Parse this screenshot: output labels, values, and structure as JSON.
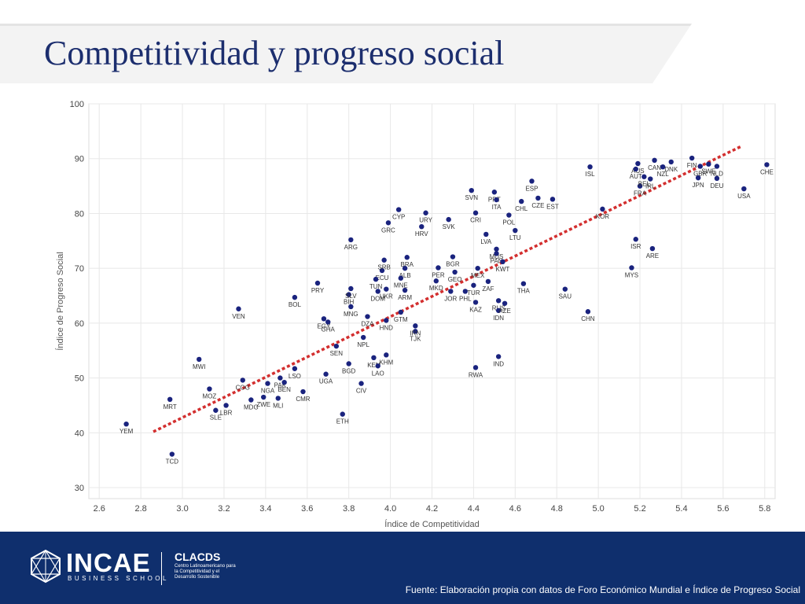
{
  "slide": {
    "title": "Competitividad y progreso social"
  },
  "footer": {
    "brand": "INCAE",
    "brand_sub": "BUSINESS SCHOOL",
    "clacds": "CLACDS",
    "clacds_sub": "Centro Latinoamericano para la Competitividad y el Desarrollo Sostenible",
    "source": "Fuente:  Elaboración propia con datos de Foro Económico Mundial e Índice de Progreso Social"
  },
  "colors": {
    "title": "#1c2e6e",
    "point": "#1a237e",
    "trend": "#d32f2f",
    "footer": "#0f2f6d",
    "grid": "#e8e8e8"
  },
  "chart_data": {
    "type": "scatter",
    "title": "",
    "xlabel": "Índice de Competitividad",
    "ylabel": "Índice de Progreso Social",
    "xlim": [
      2.55,
      5.85
    ],
    "ylim": [
      28,
      100
    ],
    "xticks": [
      2.6,
      2.8,
      3.0,
      3.2,
      3.4,
      3.6,
      3.8,
      4.0,
      4.2,
      4.4,
      4.6,
      4.8,
      5.0,
      5.2,
      5.4,
      5.6,
      5.8
    ],
    "yticks": [
      30,
      40,
      50,
      60,
      70,
      80,
      90,
      100
    ],
    "grid": true,
    "trendline": {
      "x": [
        2.86,
        5.69
      ],
      "y": [
        40.2,
        92.3
      ]
    },
    "points": [
      {
        "label": "YEM",
        "x": 2.73,
        "y": 41.6
      },
      {
        "label": "TCD",
        "x": 2.95,
        "y": 36.1
      },
      {
        "label": "MRT",
        "x": 2.94,
        "y": 46.1
      },
      {
        "label": "MWI",
        "x": 3.08,
        "y": 53.4
      },
      {
        "label": "MOZ",
        "x": 3.13,
        "y": 48.0
      },
      {
        "label": "SLE",
        "x": 3.16,
        "y": 44.1
      },
      {
        "label": "LBR",
        "x": 3.21,
        "y": 45.0
      },
      {
        "label": "VEN",
        "x": 3.27,
        "y": 62.6
      },
      {
        "label": "COG",
        "x": 3.29,
        "y": 49.6
      },
      {
        "label": "MDG",
        "x": 3.33,
        "y": 46.0
      },
      {
        "label": "ZWE",
        "x": 3.39,
        "y": 46.5
      },
      {
        "label": "NGA",
        "x": 3.41,
        "y": 49.0
      },
      {
        "label": "PAK",
        "x": 3.47,
        "y": 50.0
      },
      {
        "label": "MLI",
        "x": 3.46,
        "y": 46.3
      },
      {
        "label": "BEN",
        "x": 3.49,
        "y": 49.2
      },
      {
        "label": "LSO",
        "x": 3.54,
        "y": 51.7
      },
      {
        "label": "CMR",
        "x": 3.58,
        "y": 47.5
      },
      {
        "label": "BOL",
        "x": 3.54,
        "y": 64.7
      },
      {
        "label": "PRY",
        "x": 3.65,
        "y": 67.3
      },
      {
        "label": "UGA",
        "x": 3.69,
        "y": 50.7
      },
      {
        "label": "EGY",
        "x": 3.68,
        "y": 60.8
      },
      {
        "label": "GHA",
        "x": 3.7,
        "y": 60.2
      },
      {
        "label": "SEN",
        "x": 3.74,
        "y": 55.8
      },
      {
        "label": "ETH",
        "x": 3.77,
        "y": 43.4
      },
      {
        "label": "BGD",
        "x": 3.8,
        "y": 52.6
      },
      {
        "label": "BIH",
        "x": 3.8,
        "y": 65.2
      },
      {
        "label": "MNG",
        "x": 3.81,
        "y": 63.0
      },
      {
        "label": "ARG",
        "x": 3.81,
        "y": 75.2
      },
      {
        "label": "SLV",
        "x": 3.81,
        "y": 66.3
      },
      {
        "label": "NPL",
        "x": 3.87,
        "y": 57.4
      },
      {
        "label": "CIV",
        "x": 3.86,
        "y": 49.0
      },
      {
        "label": "DZA",
        "x": 3.89,
        "y": 61.2
      },
      {
        "label": "KEN",
        "x": 3.92,
        "y": 53.7
      },
      {
        "label": "LAO",
        "x": 3.94,
        "y": 52.2
      },
      {
        "label": "ECU",
        "x": 3.96,
        "y": 69.6
      },
      {
        "label": "SRB",
        "x": 3.97,
        "y": 71.5
      },
      {
        "label": "TUN",
        "x": 3.93,
        "y": 68.0
      },
      {
        "label": "DOM",
        "x": 3.94,
        "y": 65.8
      },
      {
        "label": "UKR",
        "x": 3.98,
        "y": 66.2
      },
      {
        "label": "KHM",
        "x": 3.98,
        "y": 54.2
      },
      {
        "label": "HND",
        "x": 3.98,
        "y": 60.5
      },
      {
        "label": "GRC",
        "x": 3.99,
        "y": 78.3
      },
      {
        "label": "CYP",
        "x": 4.04,
        "y": 80.7
      },
      {
        "label": "ARM",
        "x": 4.07,
        "y": 66.0
      },
      {
        "label": "BRA",
        "x": 4.08,
        "y": 72.0
      },
      {
        "label": "ALB",
        "x": 4.07,
        "y": 70.0
      },
      {
        "label": "MNE",
        "x": 4.05,
        "y": 68.2
      },
      {
        "label": "GTM",
        "x": 4.05,
        "y": 62.0
      },
      {
        "label": "TJK",
        "x": 4.12,
        "y": 58.5
      },
      {
        "label": "IRN",
        "x": 4.12,
        "y": 59.5
      },
      {
        "label": "HRV",
        "x": 4.15,
        "y": 77.6
      },
      {
        "label": "URY",
        "x": 4.17,
        "y": 80.1
      },
      {
        "label": "PER",
        "x": 4.23,
        "y": 70.1
      },
      {
        "label": "MKD",
        "x": 4.22,
        "y": 67.7
      },
      {
        "label": "SVK",
        "x": 4.28,
        "y": 78.9
      },
      {
        "label": "JOR",
        "x": 4.29,
        "y": 65.8
      },
      {
        "label": "GEO",
        "x": 4.31,
        "y": 69.3
      },
      {
        "label": "BGR",
        "x": 4.3,
        "y": 72.1
      },
      {
        "label": "PHL",
        "x": 4.36,
        "y": 65.8
      },
      {
        "label": "SVN",
        "x": 4.39,
        "y": 84.2
      },
      {
        "label": "CRI",
        "x": 4.41,
        "y": 80.1
      },
      {
        "label": "TUR",
        "x": 4.4,
        "y": 66.9
      },
      {
        "label": "KAZ",
        "x": 4.41,
        "y": 63.8
      },
      {
        "label": "RWA",
        "x": 4.41,
        "y": 51.9
      },
      {
        "label": "MEX",
        "x": 4.42,
        "y": 70.0
      },
      {
        "label": "LVA",
        "x": 4.46,
        "y": 76.2
      },
      {
        "label": "ZAF",
        "x": 4.47,
        "y": 67.6
      },
      {
        "label": "PRT",
        "x": 4.5,
        "y": 83.9
      },
      {
        "label": "ITA",
        "x": 4.51,
        "y": 82.5
      },
      {
        "label": "MUS",
        "x": 4.51,
        "y": 73.5
      },
      {
        "label": "PAN",
        "x": 4.51,
        "y": 72.7
      },
      {
        "label": "KWT",
        "x": 4.54,
        "y": 71.2
      },
      {
        "label": "RUS",
        "x": 4.52,
        "y": 64.1
      },
      {
        "label": "IDN",
        "x": 4.52,
        "y": 62.3
      },
      {
        "label": "IND",
        "x": 4.52,
        "y": 53.9
      },
      {
        "label": "AZE",
        "x": 4.55,
        "y": 63.6
      },
      {
        "label": "POL",
        "x": 4.57,
        "y": 79.7
      },
      {
        "label": "LTU",
        "x": 4.6,
        "y": 76.9
      },
      {
        "label": "CHL",
        "x": 4.63,
        "y": 82.2
      },
      {
        "label": "THA",
        "x": 4.64,
        "y": 67.2
      },
      {
        "label": "ESP",
        "x": 4.68,
        "y": 85.9
      },
      {
        "label": "CZE",
        "x": 4.71,
        "y": 82.8
      },
      {
        "label": "EST",
        "x": 4.78,
        "y": 82.6
      },
      {
        "label": "SAU",
        "x": 4.84,
        "y": 66.2
      },
      {
        "label": "ISL",
        "x": 4.96,
        "y": 88.5
      },
      {
        "label": "CHN",
        "x": 4.95,
        "y": 62.1
      },
      {
        "label": "KOR",
        "x": 5.02,
        "y": 80.8
      },
      {
        "label": "MYS",
        "x": 5.16,
        "y": 70.1
      },
      {
        "label": "ISR",
        "x": 5.18,
        "y": 75.3
      },
      {
        "label": "AUS",
        "x": 5.19,
        "y": 89.1
      },
      {
        "label": "AUT",
        "x": 5.18,
        "y": 88.1
      },
      {
        "label": "FRA",
        "x": 5.2,
        "y": 85.0
      },
      {
        "label": "BEL",
        "x": 5.22,
        "y": 86.7
      },
      {
        "label": "ARE",
        "x": 5.26,
        "y": 73.6
      },
      {
        "label": "CAN",
        "x": 5.27,
        "y": 89.7
      },
      {
        "label": "DNK",
        "x": 5.35,
        "y": 89.4
      },
      {
        "label": "NZL",
        "x": 5.31,
        "y": 88.5
      },
      {
        "label": "IRL",
        "x": 5.25,
        "y": 86.3
      },
      {
        "label": "FIN",
        "x": 5.45,
        "y": 90.1
      },
      {
        "label": "JPN",
        "x": 5.48,
        "y": 86.5
      },
      {
        "label": "SWE",
        "x": 5.53,
        "y": 89.0
      },
      {
        "label": "DEU",
        "x": 5.57,
        "y": 86.4
      },
      {
        "label": "GBR",
        "x": 5.49,
        "y": 88.6
      },
      {
        "label": "NLD",
        "x": 5.57,
        "y": 88.6
      },
      {
        "label": "USA",
        "x": 5.7,
        "y": 84.5
      },
      {
        "label": "CHE",
        "x": 5.81,
        "y": 88.9
      }
    ]
  }
}
